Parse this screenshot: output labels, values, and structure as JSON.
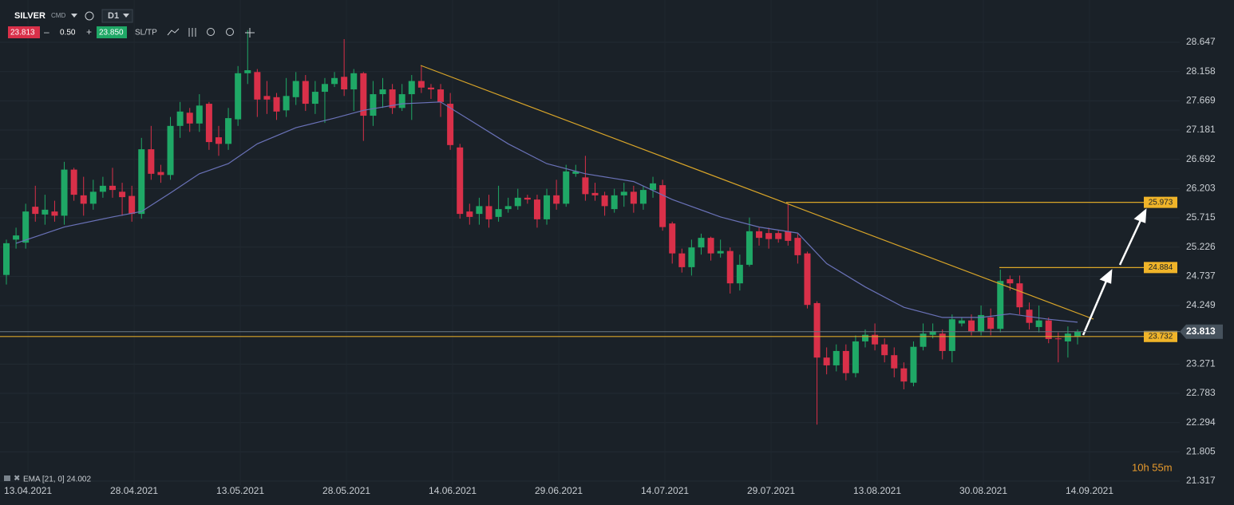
{
  "toolbar": {
    "symbol": "SILVER",
    "market": "CMD",
    "timeframe": "D1",
    "bid": "23.813",
    "volume": "0.50",
    "ask": "23.850",
    "sltp": "SL/TP"
  },
  "chart_data": {
    "type": "candlestick",
    "categories": [
      null,
      "13.04.2021",
      null,
      null,
      null,
      null,
      null,
      null,
      null,
      null,
      null,
      null,
      "28.04.2021",
      null,
      null,
      null,
      null,
      null,
      null,
      null,
      null,
      null,
      null,
      "13.05.2021",
      null,
      null,
      null,
      null,
      null,
      null,
      null,
      null,
      null,
      null,
      "28.05.2021",
      null,
      null,
      null,
      null,
      null,
      null,
      null,
      null,
      null,
      null,
      "14.06.2021",
      null,
      null,
      null,
      null,
      null,
      null,
      null,
      null,
      null,
      null,
      "29.06.2021",
      null,
      null,
      null,
      null,
      null,
      null,
      null,
      null,
      null,
      null,
      "14.07.2021",
      null,
      null,
      null,
      null,
      null,
      null,
      null,
      null,
      null,
      null,
      "29.07.2021",
      null,
      null,
      null,
      null,
      null,
      null,
      null,
      null,
      null,
      null,
      "13.08.2021",
      null,
      null,
      null,
      null,
      null,
      null,
      null,
      null,
      null,
      null,
      "30.08.2021",
      null,
      null,
      null,
      null,
      null,
      null,
      null,
      null,
      null,
      null,
      "14.09.2021"
    ],
    "open": [
      24.76,
      25.35,
      25.3,
      25.9,
      25.77,
      25.82,
      25.75,
      26.52,
      26.09,
      25.95,
      26.15,
      26.25,
      26.15,
      26.08,
      25.78,
      26.86,
      26.48,
      26.43,
      27.25,
      27.47,
      27.29,
      27.62,
      27.06,
      26.95,
      27.36,
      28.13,
      28.15,
      27.75,
      27.73,
      27.51,
      27.73,
      28.0,
      27.62,
      27.82,
      27.95,
      28.07,
      27.86,
      28.13,
      27.42,
      27.78,
      27.86,
      27.55,
      27.78,
      28.0,
      27.89,
      27.86,
      27.62,
      26.89,
      25.82,
      25.78,
      25.91,
      25.73,
      25.86,
      25.91,
      26.05,
      26.02,
      25.69,
      26.09,
      25.95,
      26.45,
      26.39,
      26.13,
      26.09,
      25.86,
      26.09,
      26.15,
      25.95,
      26.18,
      26.26,
      25.62,
      25.12,
      24.89,
      25.22,
      25.38,
      25.12,
      25.16,
      24.62,
      24.93,
      25.49,
      25.46,
      25.46,
      25.49,
      25.38,
      25.12,
      24.29,
      23.38,
      23.25,
      23.49,
      23.12,
      23.65,
      23.76,
      23.6,
      23.42,
      23.2,
      22.96,
      23.56,
      23.76,
      23.78,
      23.49,
      23.95,
      24.0,
      23.82,
      24.05,
      23.86,
      24.69,
      24.62,
      24.18,
      23.89,
      24.0,
      23.7,
      23.65,
      23.73
    ],
    "high": [
      25.35,
      25.55,
      25.95,
      26.25,
      26.1,
      26.0,
      26.65,
      26.55,
      26.4,
      26.35,
      26.4,
      26.55,
      26.3,
      26.25,
      27.05,
      27.25,
      26.6,
      27.4,
      27.65,
      27.55,
      27.78,
      27.65,
      27.25,
      27.55,
      28.25,
      28.85,
      28.2,
      28.0,
      27.8,
      28.05,
      28.15,
      28.1,
      28.0,
      28.05,
      28.15,
      28.7,
      28.2,
      28.15,
      28.0,
      28.05,
      27.95,
      27.95,
      28.1,
      28.25,
      27.95,
      27.95,
      27.8,
      26.95,
      25.95,
      26.05,
      26.1,
      26.25,
      26.05,
      26.2,
      26.1,
      26.1,
      26.2,
      26.35,
      26.6,
      26.6,
      26.75,
      26.3,
      26.15,
      26.2,
      26.3,
      26.25,
      26.25,
      26.4,
      26.35,
      25.65,
      25.2,
      25.35,
      25.45,
      25.4,
      25.35,
      25.22,
      25.1,
      25.72,
      25.55,
      25.55,
      25.5,
      25.95,
      25.45,
      25.15,
      24.32,
      23.55,
      23.6,
      23.6,
      23.75,
      23.85,
      23.95,
      23.7,
      23.55,
      23.3,
      23.65,
      23.95,
      23.95,
      23.85,
      24.1,
      24.05,
      24.1,
      24.25,
      24.2,
      24.85,
      24.75,
      24.75,
      24.3,
      24.25,
      24.05,
      23.8,
      23.9,
      23.85
    ],
    "low": [
      24.6,
      25.2,
      25.2,
      25.65,
      25.6,
      25.65,
      25.6,
      26.0,
      25.75,
      25.85,
      26.05,
      26.05,
      25.75,
      25.65,
      25.7,
      26.35,
      26.3,
      26.35,
      27.05,
      27.15,
      27.15,
      26.85,
      26.75,
      26.85,
      27.25,
      27.95,
      27.4,
      27.45,
      27.35,
      27.4,
      27.6,
      27.5,
      27.45,
      27.3,
      27.9,
      27.75,
      27.5,
      27.0,
      27.25,
      27.55,
      27.45,
      27.5,
      27.35,
      27.8,
      27.7,
      27.4,
      26.85,
      25.7,
      25.6,
      25.6,
      25.55,
      25.65,
      25.8,
      25.85,
      25.95,
      25.55,
      25.6,
      25.85,
      25.9,
      26.4,
      26.0,
      26.0,
      25.75,
      25.8,
      25.9,
      25.8,
      25.85,
      26.05,
      25.5,
      24.95,
      24.8,
      24.75,
      25.1,
      25.0,
      25.05,
      24.45,
      24.5,
      24.9,
      25.25,
      25.2,
      25.3,
      25.25,
      24.95,
      24.2,
      22.26,
      23.1,
      23.15,
      23.0,
      23.05,
      23.55,
      23.5,
      23.3,
      23.05,
      22.85,
      22.9,
      23.5,
      23.7,
      23.35,
      23.3,
      23.9,
      23.75,
      23.75,
      23.75,
      23.8,
      24.5,
      24.1,
      23.85,
      23.8,
      23.62,
      23.3,
      23.38,
      23.6
    ],
    "close": [
      25.29,
      25.42,
      25.82,
      25.78,
      25.85,
      25.75,
      26.52,
      26.1,
      25.95,
      26.15,
      26.25,
      26.18,
      26.06,
      25.78,
      26.86,
      26.45,
      26.43,
      27.25,
      27.49,
      27.29,
      27.59,
      26.98,
      26.95,
      27.38,
      28.13,
      28.18,
      27.69,
      27.69,
      27.49,
      27.75,
      28.0,
      27.62,
      27.82,
      27.95,
      28.05,
      27.86,
      28.13,
      27.42,
      27.78,
      27.86,
      27.55,
      27.78,
      28.0,
      27.89,
      27.86,
      27.65,
      26.93,
      25.78,
      25.73,
      25.91,
      25.69,
      25.86,
      25.91,
      26.05,
      26.02,
      25.69,
      26.09,
      25.95,
      26.49,
      26.49,
      26.11,
      26.09,
      25.91,
      26.09,
      26.15,
      25.95,
      26.18,
      26.29,
      25.56,
      25.12,
      24.89,
      25.22,
      25.38,
      25.12,
      25.16,
      24.62,
      24.93,
      25.49,
      25.38,
      25.36,
      25.36,
      25.33,
      25.09,
      24.26,
      23.38,
      23.25,
      23.49,
      23.12,
      23.65,
      23.76,
      23.6,
      23.42,
      23.2,
      22.98,
      23.56,
      23.78,
      23.82,
      23.49,
      24.02,
      24.0,
      23.82,
      24.09,
      23.86,
      24.66,
      24.62,
      24.22,
      23.96,
      24.0,
      23.69,
      23.69,
      23.78,
      23.81
    ],
    "up_color": "#1fa866",
    "down_color": "#d93049",
    "ema": {
      "name": "EMA [21, 0] 24.002",
      "color": "#6a72b8",
      "x": [
        1,
        6,
        11,
        14,
        17,
        20,
        23,
        26,
        30,
        34,
        37,
        41,
        45,
        48,
        52,
        56,
        60,
        65,
        69,
        74,
        78,
        82,
        85,
        89,
        93,
        97,
        101,
        104,
        108,
        111
      ],
      "values": [
        25.29,
        25.56,
        25.73,
        25.82,
        26.13,
        26.45,
        26.62,
        26.95,
        27.22,
        27.38,
        27.51,
        27.62,
        27.65,
        27.35,
        26.95,
        26.62,
        26.45,
        26.32,
        26.02,
        25.73,
        25.56,
        25.46,
        24.95,
        24.56,
        24.22,
        24.05,
        24.05,
        24.11,
        24.02,
        23.97
      ]
    },
    "levels": [
      {
        "value": 25.973,
        "label": "25.973"
      },
      {
        "value": 24.884,
        "label": "24.884"
      },
      {
        "value": 23.732,
        "label": "23.732"
      }
    ],
    "current_price": {
      "value": 23.813,
      "label": "23.813"
    },
    "ylim": [
      21.317,
      28.647
    ],
    "yticks": [
      28.647,
      28.158,
      27.669,
      27.181,
      26.692,
      26.203,
      25.715,
      25.226,
      24.737,
      24.249,
      23.271,
      22.783,
      22.294,
      21.805,
      21.317
    ],
    "grid": true,
    "countdown": "10h 55m"
  }
}
